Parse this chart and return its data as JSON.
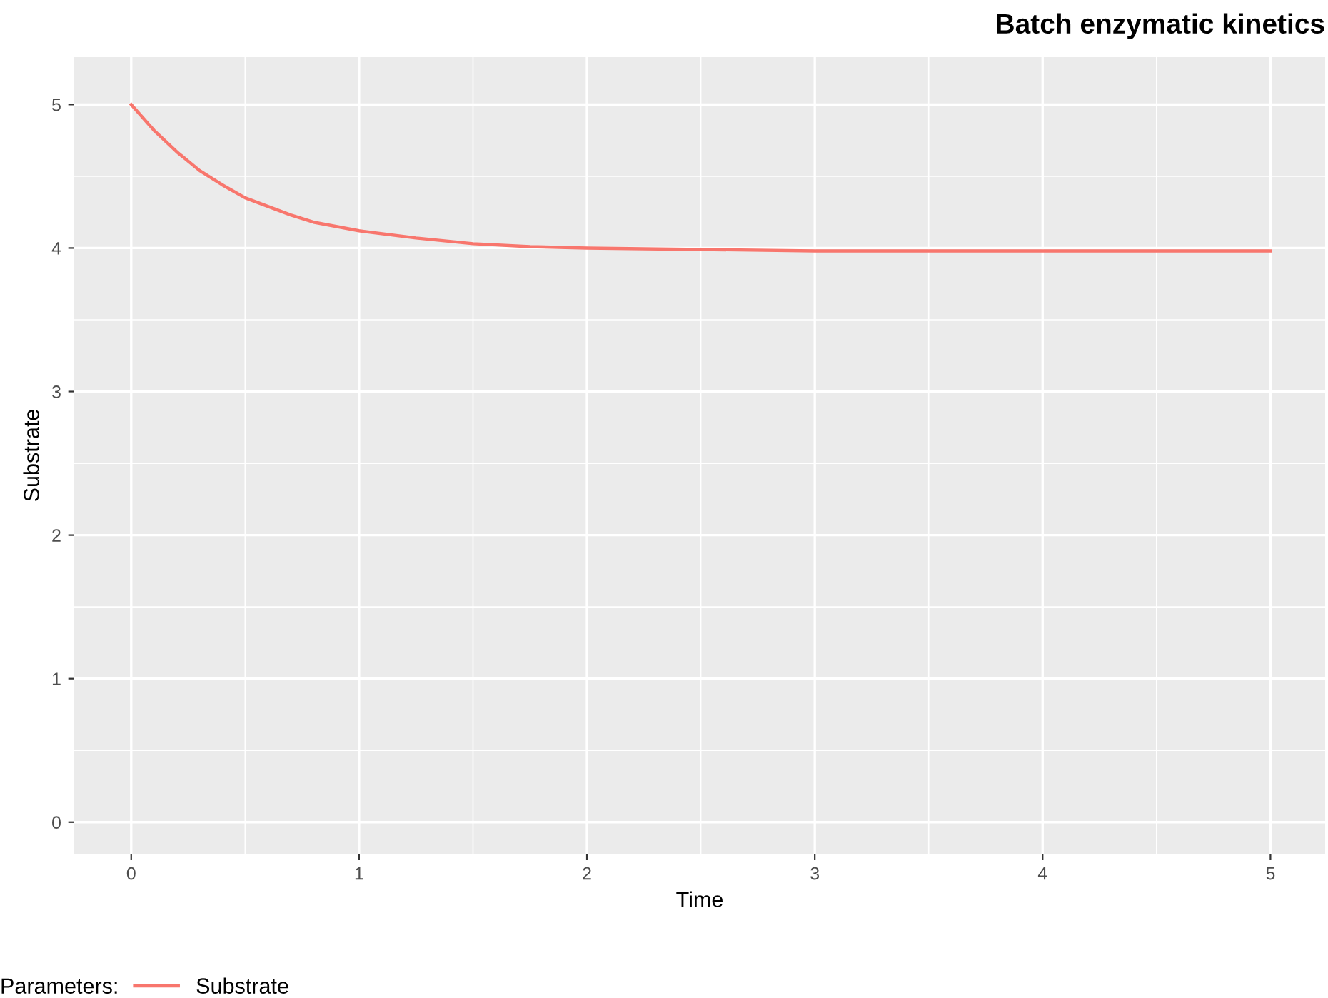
{
  "chart_data": {
    "type": "line",
    "title": "Batch enzymatic kinetics",
    "xlabel": "Time",
    "ylabel": "Substrate",
    "legend_title": "Parameters:",
    "x": [
      0,
      0.1,
      0.2,
      0.3,
      0.4,
      0.5,
      0.6,
      0.7,
      0.8,
      0.9,
      1.0,
      1.25,
      1.5,
      1.75,
      2.0,
      2.5,
      3.0,
      4.0,
      5.0
    ],
    "series": [
      {
        "name": "Substrate",
        "color": "#f8766d",
        "values": [
          5.0,
          4.82,
          4.67,
          4.54,
          4.44,
          4.35,
          4.29,
          4.23,
          4.18,
          4.15,
          4.12,
          4.07,
          4.03,
          4.01,
          4.0,
          3.99,
          3.98,
          3.98,
          3.98
        ]
      }
    ],
    "xlim": [
      -0.25,
      5.24
    ],
    "ylim": [
      -0.22,
      5.33
    ],
    "xticks": [
      0,
      1,
      2,
      3,
      4,
      5
    ],
    "yticks": [
      0,
      1,
      2,
      3,
      4,
      5
    ],
    "grid": true,
    "legend": "bottom",
    "line_style": "solid",
    "marker": "none"
  }
}
